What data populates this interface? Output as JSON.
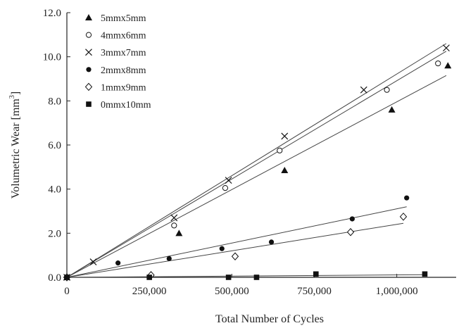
{
  "chart_data": {
    "type": "scatter",
    "xlabel": "Total Number of Cycles",
    "ylabel": "Volumetric Wear [mm",
    "ylabel_sup": "3",
    "ylabel_close": "]",
    "xlim": [
      0,
      1180000
    ],
    "ylim": [
      0,
      12
    ],
    "x_ticks": [
      0,
      250000,
      500000,
      750000,
      1000000
    ],
    "x_tick_labels": [
      "0",
      "250,000",
      "500,000",
      "750,000",
      "1,000,000"
    ],
    "y_ticks": [
      0,
      2,
      4,
      6,
      8,
      10,
      12
    ],
    "y_tick_labels": [
      "0.0",
      "2.0",
      "4.0",
      "6.0",
      "8.0",
      "10.0",
      "12.0"
    ],
    "grid": false,
    "legend_position": "top-left",
    "series": [
      {
        "name": "5mmx5mm",
        "marker": "filled-triangle",
        "points": [
          [
            0,
            0
          ],
          [
            340000,
            2.0
          ],
          [
            660000,
            4.85
          ],
          [
            985000,
            7.6
          ],
          [
            1155000,
            9.6
          ]
        ],
        "fit": [
          [
            0,
            0
          ],
          [
            1150000,
            9.15
          ]
        ]
      },
      {
        "name": "4mmx6mm",
        "marker": "open-circle",
        "points": [
          [
            0,
            0
          ],
          [
            325000,
            2.35
          ],
          [
            480000,
            4.05
          ],
          [
            645000,
            5.75
          ],
          [
            970000,
            8.5
          ],
          [
            1125000,
            9.7
          ]
        ],
        "fit": [
          [
            0,
            0
          ],
          [
            1150000,
            10.25
          ]
        ]
      },
      {
        "name": "3mmx7mm",
        "marker": "cross",
        "points": [
          [
            0,
            0
          ],
          [
            80000,
            0.7
          ],
          [
            325000,
            2.7
          ],
          [
            490000,
            4.4
          ],
          [
            660000,
            6.4
          ],
          [
            900000,
            8.5
          ],
          [
            1150000,
            10.4
          ]
        ],
        "fit": [
          [
            0,
            0
          ],
          [
            1150000,
            10.6
          ]
        ]
      },
      {
        "name": "2mmx8mm",
        "marker": "filled-circle",
        "points": [
          [
            0,
            0
          ],
          [
            155000,
            0.65
          ],
          [
            310000,
            0.85
          ],
          [
            470000,
            1.3
          ],
          [
            620000,
            1.6
          ],
          [
            865000,
            2.65
          ],
          [
            1030000,
            3.6
          ]
        ],
        "fit": [
          [
            0,
            0
          ],
          [
            1030000,
            3.2
          ]
        ]
      },
      {
        "name": "1mmx9mm",
        "marker": "open-diamond",
        "points": [
          [
            0,
            0
          ],
          [
            255000,
            0.1
          ],
          [
            510000,
            0.95
          ],
          [
            860000,
            2.05
          ],
          [
            1020000,
            2.75
          ]
        ],
        "fit": [
          [
            0,
            0
          ],
          [
            1020000,
            2.45
          ]
        ]
      },
      {
        "name": "0mmx10mm",
        "marker": "filled-square",
        "points": [
          [
            0,
            0
          ],
          [
            250000,
            0.0
          ],
          [
            490000,
            0.0
          ],
          [
            575000,
            0.0
          ],
          [
            755000,
            0.15
          ],
          [
            1085000,
            0.15
          ]
        ],
        "fit": [
          [
            0,
            0
          ],
          [
            1085000,
            0.12
          ]
        ]
      }
    ]
  }
}
